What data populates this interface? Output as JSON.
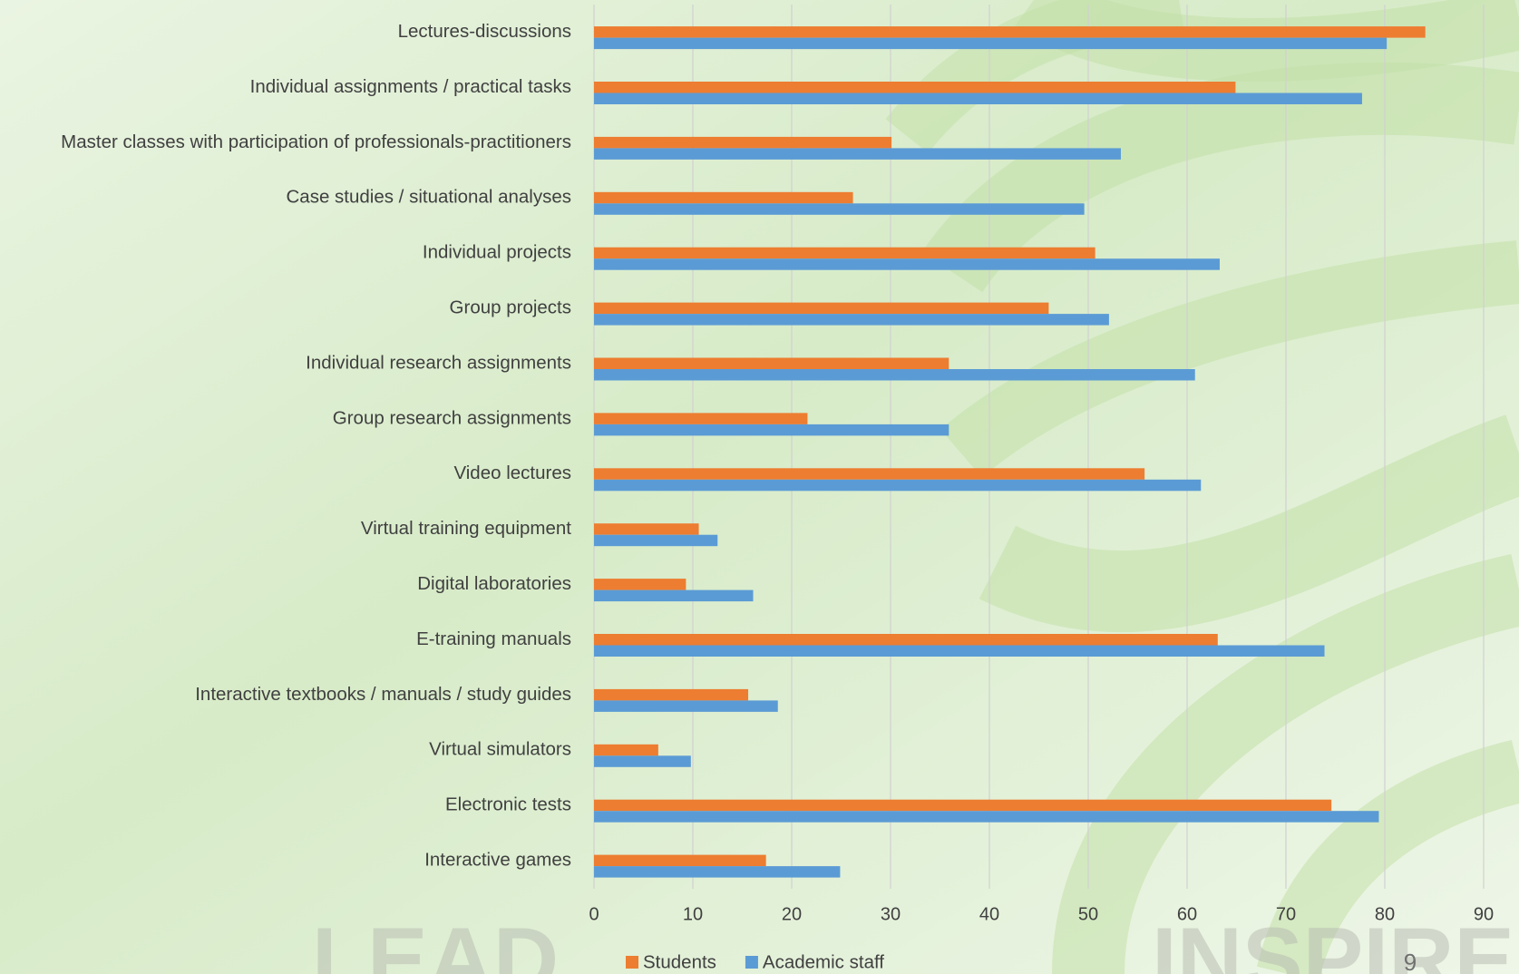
{
  "chart_data": {
    "type": "bar",
    "orientation": "horizontal",
    "categories": [
      "Lectures-discussions",
      "Individual assignments / practical tasks",
      "Master classes with participation of professionals-practitioners",
      "Case studies / situational analyses",
      "Individual projects",
      "Group projects",
      "Individual research assignments",
      "Group research assignments",
      "Video lectures",
      "Virtual training equipment",
      "Digital laboratories",
      "E-training manuals",
      "Interactive textbooks / manuals / study guides",
      "Virtual simulators",
      "Electronic tests",
      "Interactive games"
    ],
    "series": [
      {
        "name": "Students",
        "color": "#ed7d31",
        "values": [
          84.1,
          64.9,
          30.1,
          26.2,
          50.7,
          46.0,
          35.9,
          21.6,
          55.7,
          10.6,
          9.3,
          63.1,
          15.6,
          6.5,
          74.6,
          17.4
        ]
      },
      {
        "name": "Academic staff",
        "color": "#5b9bd5",
        "values": [
          80.2,
          77.7,
          53.3,
          49.6,
          63.3,
          52.1,
          60.8,
          35.9,
          61.4,
          12.5,
          16.1,
          73.9,
          18.6,
          9.8,
          79.4,
          24.9
        ]
      }
    ],
    "xlim": [
      0,
      90
    ],
    "xticks": [
      0,
      10,
      20,
      30,
      40,
      50,
      60,
      70,
      80,
      90
    ],
    "grid": true,
    "legend": "bottom"
  },
  "slide": {
    "watermark_left": "LEAD",
    "watermark_right": "INSPIRE",
    "page_number": "9"
  }
}
